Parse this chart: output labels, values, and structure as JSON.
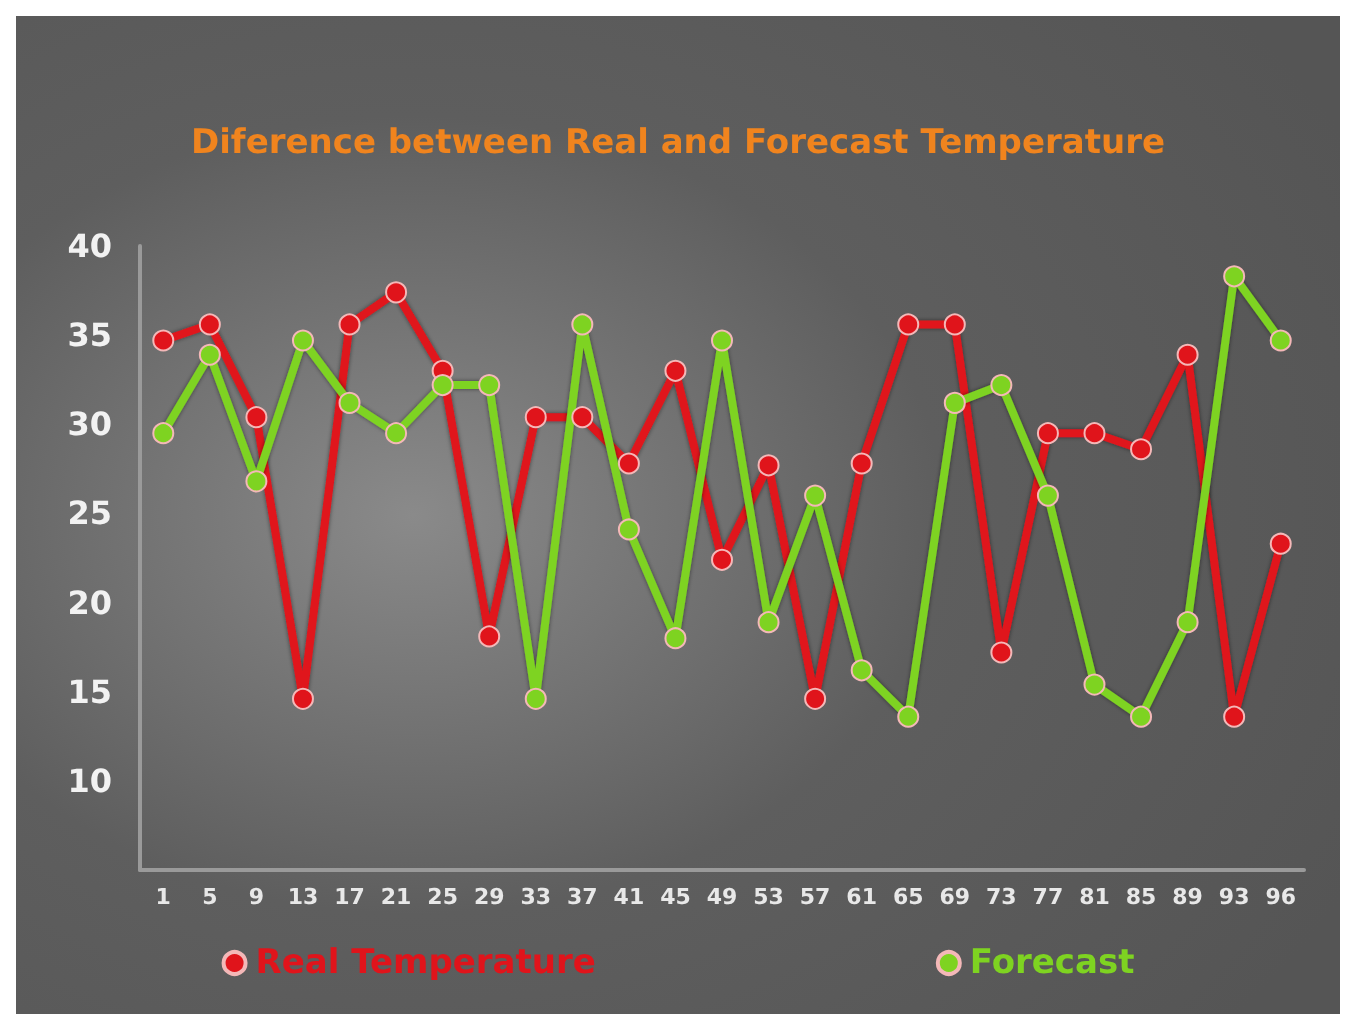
{
  "chart_data": {
    "type": "line",
    "title": "Diference between Real and Forecast Temperature",
    "categories": [
      "1",
      "5",
      "9",
      "13",
      "17",
      "21",
      "25",
      "29",
      "33",
      "37",
      "41",
      "45",
      "49",
      "53",
      "57",
      "61",
      "65",
      "69",
      "73",
      "77",
      "81",
      "85",
      "89",
      "93",
      "96"
    ],
    "series": [
      {
        "name": "Real Temperature",
        "color": "#e0141b",
        "values": [
          34.7,
          35.6,
          30.4,
          14.6,
          35.6,
          37.4,
          33.0,
          18.1,
          30.4,
          30.4,
          27.8,
          33.0,
          22.4,
          27.7,
          14.6,
          27.8,
          35.6,
          35.6,
          17.2,
          29.5,
          29.5,
          28.6,
          33.9,
          13.6,
          23.3
        ]
      },
      {
        "name": "Forecast",
        "color": "#7ed321",
        "values": [
          29.5,
          33.9,
          26.8,
          34.7,
          31.2,
          29.5,
          32.2,
          32.2,
          14.6,
          35.6,
          24.1,
          18.0,
          34.7,
          18.9,
          26.0,
          16.2,
          13.6,
          31.2,
          32.2,
          26.0,
          15.4,
          13.6,
          18.9,
          38.3,
          34.7
        ]
      }
    ],
    "ylim": [
      5,
      40
    ],
    "yticks": [
      10,
      15,
      20,
      25,
      30,
      35,
      40
    ],
    "grid": false,
    "legend": "bottom",
    "marker": "circle",
    "line_style": "solid"
  }
}
